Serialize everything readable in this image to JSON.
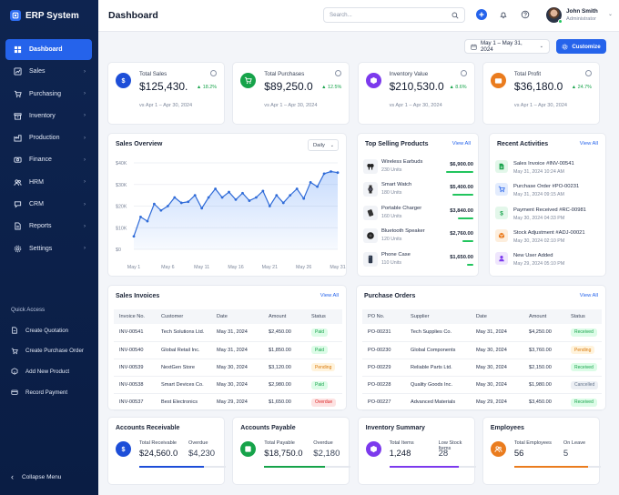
{
  "app": {
    "name": "ERP System"
  },
  "nav": [
    {
      "label": "Dashboard",
      "icon": "dashboard-icon",
      "active": true
    },
    {
      "label": "Sales",
      "icon": "sales-icon"
    },
    {
      "label": "Purchasing",
      "icon": "cart-icon"
    },
    {
      "label": "Inventory",
      "icon": "inventory-icon"
    },
    {
      "label": "Production",
      "icon": "factory-icon"
    },
    {
      "label": "Finance",
      "icon": "finance-icon"
    },
    {
      "label": "HRM",
      "icon": "users-icon"
    },
    {
      "label": "CRM",
      "icon": "crm-icon"
    },
    {
      "label": "Reports",
      "icon": "reports-icon"
    },
    {
      "label": "Settings",
      "icon": "gear-icon"
    }
  ],
  "quick_access": {
    "title": "Quick Access",
    "items": [
      {
        "label": "Create Quotation",
        "icon": "quotation-icon"
      },
      {
        "label": "Create Purchase Order",
        "icon": "purchase-order-icon"
      },
      {
        "label": "Add New Product",
        "icon": "product-icon"
      },
      {
        "label": "Record Payment",
        "icon": "payment-icon"
      }
    ]
  },
  "collapse_label": "Collapse Menu",
  "header": {
    "title": "Dashboard",
    "search_placeholder": "Search...",
    "user_name": "John Smith",
    "user_role": "Administrator"
  },
  "toolbar": {
    "date_range": "May 1 – May 31, 2024",
    "customize_label": "Customize"
  },
  "kpis": [
    {
      "label": "Total Sales",
      "value": "$125,430.",
      "delta": "▲ 18.2%",
      "vs": "vs Apr 1 – Apr 30, 2024",
      "color": "#1d4ed8",
      "icon": "dollar-icon"
    },
    {
      "label": "Total Purchases",
      "value": "$89,250.0",
      "delta": "▲ 12.5%",
      "vs": "vs Apr 1 – Apr 30, 2024",
      "color": "#16a34a",
      "icon": "cart-icon"
    },
    {
      "label": "Inventory Value",
      "value": "$210,530.0",
      "delta": "▲ 8.6%",
      "vs": "vs Apr 1 – Apr 30, 2024",
      "color": "#7c3aed",
      "icon": "box-icon"
    },
    {
      "label": "Total Profit",
      "value": "$36,180.0",
      "delta": "▲ 24.7%",
      "vs": "vs Apr 1 – Apr 30, 2024",
      "color": "#ea7c1e",
      "icon": "wallet-icon"
    }
  ],
  "sales_overview": {
    "title": "Sales Overview",
    "period": "Daily"
  },
  "chart_data": {
    "type": "area",
    "title": "Sales Overview",
    "xlabel": "",
    "ylabel": "",
    "categories": [
      "May 1",
      "May 6",
      "May 11",
      "May 16",
      "May 21",
      "May 26",
      "May 31"
    ],
    "y_ticks": [
      "$0",
      "$10K",
      "$20K",
      "$30K",
      "$40K"
    ],
    "ylim": [
      0,
      40000
    ],
    "grid": true,
    "x": [
      1,
      2,
      3,
      4,
      5,
      6,
      7,
      8,
      9,
      10,
      11,
      12,
      13,
      14,
      15,
      16,
      17,
      18,
      19,
      20,
      21,
      22,
      23,
      24,
      25,
      26,
      27,
      28,
      29,
      30,
      31
    ],
    "values": [
      6000,
      15000,
      13000,
      21000,
      18000,
      20000,
      24000,
      21500,
      22000,
      25000,
      19000,
      24000,
      28000,
      24000,
      26500,
      23000,
      26000,
      22500,
      24000,
      27000,
      20000,
      25000,
      21500,
      25000,
      28000,
      23500,
      31000,
      29000,
      35000,
      36000,
      35500
    ]
  },
  "top_selling": {
    "title": "Top Selling Products",
    "view_all": "View All",
    "items": [
      {
        "name": "Wireless Earbuds",
        "units": "230 Units",
        "amount": "$6,900.00",
        "share": 1.0,
        "icon": "earbuds-icon"
      },
      {
        "name": "Smart Watch",
        "units": "180 Units",
        "amount": "$5,400.00",
        "share": 0.78,
        "icon": "watch-icon"
      },
      {
        "name": "Portable Charger",
        "units": "160 Units",
        "amount": "$3,840.00",
        "share": 0.56,
        "icon": "charger-icon"
      },
      {
        "name": "Bluetooth Speaker",
        "units": "120 Units",
        "amount": "$2,760.00",
        "share": 0.4,
        "icon": "speaker-icon"
      },
      {
        "name": "Phone Case",
        "units": "110 Units",
        "amount": "$1,650.00",
        "share": 0.24,
        "icon": "phone-case-icon"
      }
    ]
  },
  "recent_activities": {
    "title": "Recent Activities",
    "view_all": "View All",
    "items": [
      {
        "title": "Sales Invoice #INV-00541",
        "time": "May 31, 2024 10:24 AM",
        "color": "#16a34a",
        "bg": "#e3f7ea",
        "icon": "invoice-icon"
      },
      {
        "title": "Purchase Order #PO-00231",
        "time": "May 31, 2024 09:15 AM",
        "color": "#2563eb",
        "bg": "#e3ecfd",
        "icon": "cart-icon"
      },
      {
        "title": "Payment Received #RC-00981",
        "time": "May 30, 2024 04:33 PM",
        "color": "#16a34a",
        "bg": "#e3f7ea",
        "icon": "dollar-icon"
      },
      {
        "title": "Stock Adjustment #ADJ-00021",
        "time": "May 30, 2024 02:10 PM",
        "color": "#ea7c1e",
        "bg": "#fdeedd",
        "icon": "box-icon"
      },
      {
        "title": "New User Added",
        "time": "May 29, 2024 05:10 PM",
        "color": "#7c3aed",
        "bg": "#efe6fd",
        "icon": "user-icon"
      }
    ]
  },
  "sales_invoices": {
    "title": "Sales Invoices",
    "view_all": "View All",
    "columns": [
      "Invoice No.",
      "Customer",
      "Date",
      "Amount",
      "Status"
    ],
    "rows": [
      [
        "INV-00541",
        "Tech Solutions Ltd.",
        "May 31, 2024",
        "$2,450.00",
        "Paid"
      ],
      [
        "INV-00540",
        "Global Retail Inc.",
        "May 31, 2024",
        "$1,850.00",
        "Paid"
      ],
      [
        "INV-00539",
        "NextGen Store",
        "May 30, 2024",
        "$3,120.00",
        "Pending"
      ],
      [
        "INV-00538",
        "Smart Devices Co.",
        "May 30, 2024",
        "$2,980.00",
        "Paid"
      ],
      [
        "INV-00537",
        "Best Electronics",
        "May 29, 2024",
        "$1,650.00",
        "Overdue"
      ]
    ]
  },
  "purchase_orders": {
    "title": "Purchase Orders",
    "view_all": "View All",
    "columns": [
      "PO No.",
      "Supplier",
      "Date",
      "Amount",
      "Status"
    ],
    "rows": [
      [
        "PO-00231",
        "Tech Supplies Co.",
        "May 31, 2024",
        "$4,250.00",
        "Received"
      ],
      [
        "PO-00230",
        "Global Components",
        "May 30, 2024",
        "$3,760.00",
        "Pending"
      ],
      [
        "PO-00229",
        "Reliable Parts Ltd.",
        "May 30, 2024",
        "$2,150.00",
        "Received"
      ],
      [
        "PO-00228",
        "Quality Goods Inc.",
        "May 30, 2024",
        "$1,980.00",
        "Cancelled"
      ],
      [
        "PO-00227",
        "Advanced Materials",
        "May 29, 2024",
        "$3,450.00",
        "Received"
      ]
    ]
  },
  "summaries": [
    {
      "title": "Accounts Receivable",
      "l1": "Total Receivable",
      "v1": "$24,560.0",
      "l2": "Overdue",
      "v2": "$4,230",
      "color": "#1d4ed8",
      "fill": 0.75,
      "icon": "dollar-icon"
    },
    {
      "title": "Accounts Payable",
      "l1": "Total Payable",
      "v1": "$18,750.0",
      "l2": "Overdue",
      "v2": "$2,180",
      "color": "#16a34a",
      "fill": 0.7,
      "icon": "payable-icon"
    },
    {
      "title": "Inventory Summary",
      "l1": "Total Items",
      "v1": "1,248",
      "l2": "Low Stock Items",
      "v2": "28",
      "color": "#7c3aed",
      "fill": 0.8,
      "icon": "box-icon"
    },
    {
      "title": "Employees",
      "l1": "Total Employees",
      "v1": "56",
      "l2": "On Leave",
      "v2": "5",
      "color": "#ea7c1e",
      "fill": 0.85,
      "icon": "users-icon"
    }
  ]
}
